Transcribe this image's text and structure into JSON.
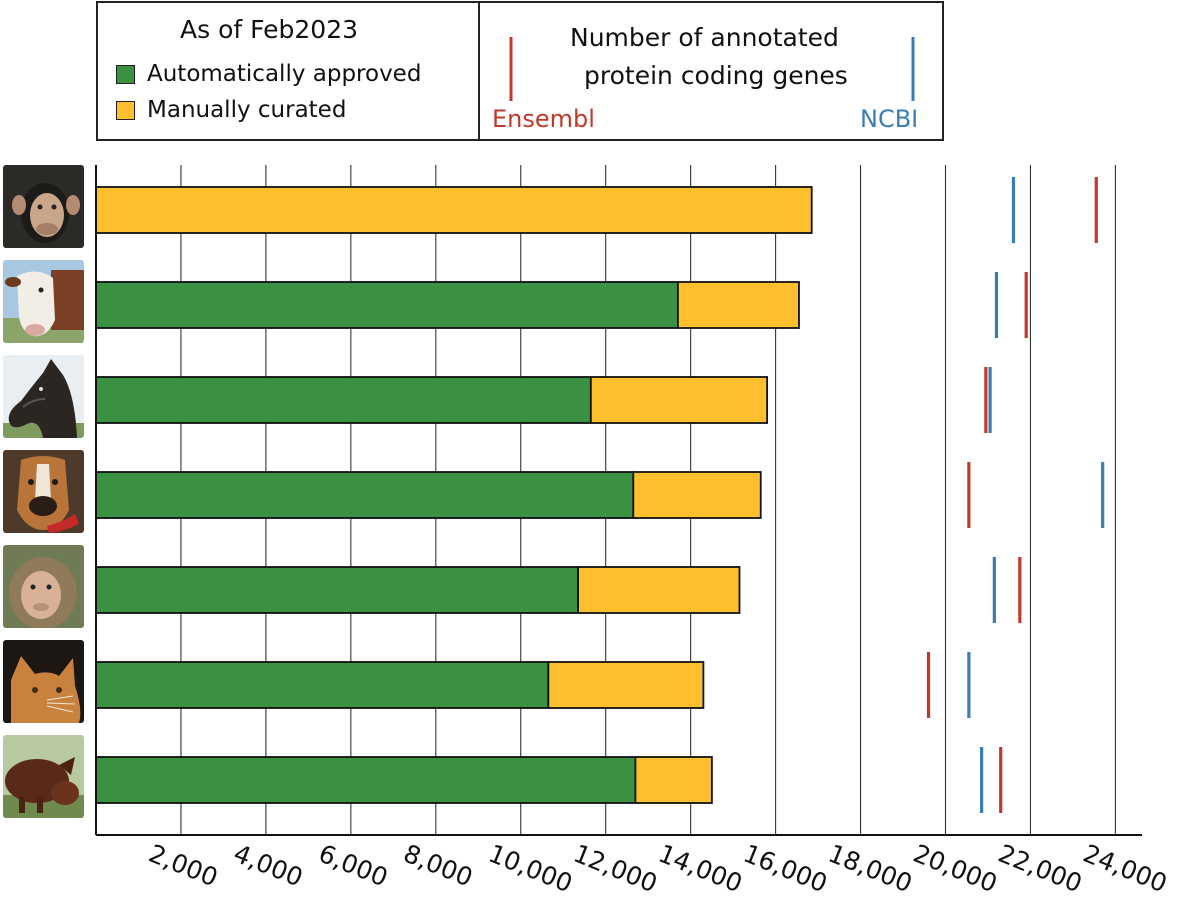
{
  "legend": {
    "title": "As of Feb2023",
    "items": [
      {
        "label": "Automatically approved",
        "color": "#3a9142"
      },
      {
        "label": "Manually curated",
        "color": "#fdbf2d"
      }
    ],
    "reference_title_line1": "Number of annotated",
    "reference_title_line2": "protein coding genes",
    "ensembl_label": "Ensembl",
    "ncbi_label": "NCBI",
    "ensembl_color": "#c1392b",
    "ncbi_color": "#3a7db5"
  },
  "chart_data": {
    "type": "bar",
    "orientation": "horizontal",
    "stacked": true,
    "categories": [
      "chimpanzee",
      "cow",
      "horse",
      "dog",
      "macaque",
      "cat",
      "pig"
    ],
    "series": [
      {
        "name": "Automatically approved",
        "color": "#3a9142",
        "values": [
          0,
          13700,
          11650,
          12650,
          11350,
          10650,
          12700
        ]
      },
      {
        "name": "Manually curated",
        "color": "#fdbf2d",
        "values": [
          16850,
          2850,
          4150,
          3000,
          3800,
          3650,
          1800
        ]
      }
    ],
    "reference_lines": {
      "Ensembl": [
        23550,
        21900,
        20950,
        20550,
        21750,
        19600,
        21300
      ],
      "NCBI": [
        21600,
        21200,
        21050,
        23700,
        21150,
        20550,
        20850
      ]
    },
    "x_ticks": [
      "2,000",
      "4,000",
      "6,000",
      "8,000",
      "10,000",
      "12,000",
      "14,000",
      "16,000",
      "18,000",
      "20,000",
      "22,000",
      "24,000"
    ],
    "x_tick_values": [
      2000,
      4000,
      6000,
      8000,
      10000,
      12000,
      14000,
      16000,
      18000,
      20000,
      22000,
      24000
    ],
    "xlim": [
      0,
      24700
    ],
    "grid": "vertical"
  }
}
